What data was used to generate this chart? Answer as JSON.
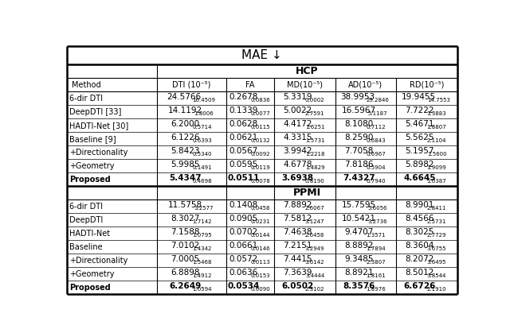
{
  "title": "MAE ↓",
  "hcp_header": "HCP",
  "ppmi_header": "PPMI",
  "col_headers": [
    "Method",
    "DTI (10⁻⁵)",
    "FA",
    "MD(10⁻⁵)",
    "AD(10⁻⁵)",
    "RD(10⁻⁵)"
  ],
  "hcp_rows": [
    [
      "6-dir DTI",
      "24.5766",
      "16.4509",
      "0.2678",
      "0.0836",
      "5.3319",
      "0.0002",
      "38.9953",
      "29.2846",
      "19.9455",
      "14.7553"
    ],
    [
      "DeepDTI [33]",
      "14.1192",
      "1.8006",
      "0.1339",
      "0.0077",
      "5.0022",
      "2.7591",
      "16.5967",
      "5.1187",
      "7.7222",
      "1.3883"
    ],
    [
      "HADTI-Net [30]",
      "6.2000",
      "0.5714",
      "0.0628",
      "0.0115",
      "4.4172",
      "1.6251",
      "8.1080",
      "0.7112",
      "5.4671",
      "1.8807"
    ],
    [
      "Baseline [9]",
      "6.1226",
      "0.6393",
      "0.0621",
      "0.0132",
      "4.3315",
      "1.5731",
      "8.2590",
      "0.6843",
      "5.5625",
      "2.1104"
    ],
    [
      "+Directionality",
      "5.8423",
      "0.5340",
      "0.0567",
      "0.0092",
      "3.9942",
      "1.2218",
      "7.7058",
      "0.6967",
      "5.1957",
      "1.5600"
    ],
    [
      "+Geometry",
      "5.9985",
      "0.1491",
      "0.0595",
      "0.0119",
      "4.6778",
      "1.4829",
      "7.8186",
      "0.5904",
      "5.8982",
      "1.9099"
    ],
    [
      "Proposed",
      "5.4347",
      "0.4698",
      "0.0511",
      "0.0078",
      "3.6938",
      "0.8190",
      "7.4327",
      "0.7940",
      "4.6645",
      "1.0387"
    ]
  ],
  "ppmi_rows": [
    [
      "6-dir DTI",
      "11.5758",
      "3.2577",
      "0.1408",
      "0.0458",
      "7.8892",
      "2.6067",
      "15.7595",
      "5.6056",
      "8.9901",
      "2.8411"
    ],
    [
      "DeepDTI",
      "8.3027",
      "1.7142",
      "0.0905",
      "0.0231",
      "7.5812",
      "3.1247",
      "10.5421",
      "3.2736",
      "8.4566",
      "2.5731"
    ],
    [
      "HADTI-Net",
      "7.1588",
      "1.0795",
      "0.0702",
      "0.0144",
      "7.4638",
      "2.6458",
      "9.4707",
      "1.3571",
      "8.3025",
      "2.7729"
    ],
    [
      "Baseline",
      "7.0102",
      "1.4342",
      "0.0661",
      "0.0146",
      "7.2151",
      "3.2949",
      "8.8892",
      "1.7894",
      "8.3604",
      "3.6755"
    ],
    [
      "+Directionality",
      "7.0005",
      "1.5468",
      "0.0572",
      "0.0113",
      "7.4415",
      "3.6142",
      "9.3485",
      "2.3807",
      "8.2072",
      "3.6495"
    ],
    [
      "+Geometry",
      "6.8898",
      "1.4912",
      "0.0636",
      "0.0153",
      "7.3639",
      "3.4444",
      "8.8921",
      "1.8161",
      "8.5012",
      "3.8544"
    ],
    [
      "Proposed",
      "6.2649",
      "1.0594",
      "0.0534",
      "0.0090",
      "6.0502",
      "2.3102",
      "8.3576",
      "1.8976",
      "6.6726",
      "2.1910"
    ]
  ],
  "bg_color": "#ffffff"
}
